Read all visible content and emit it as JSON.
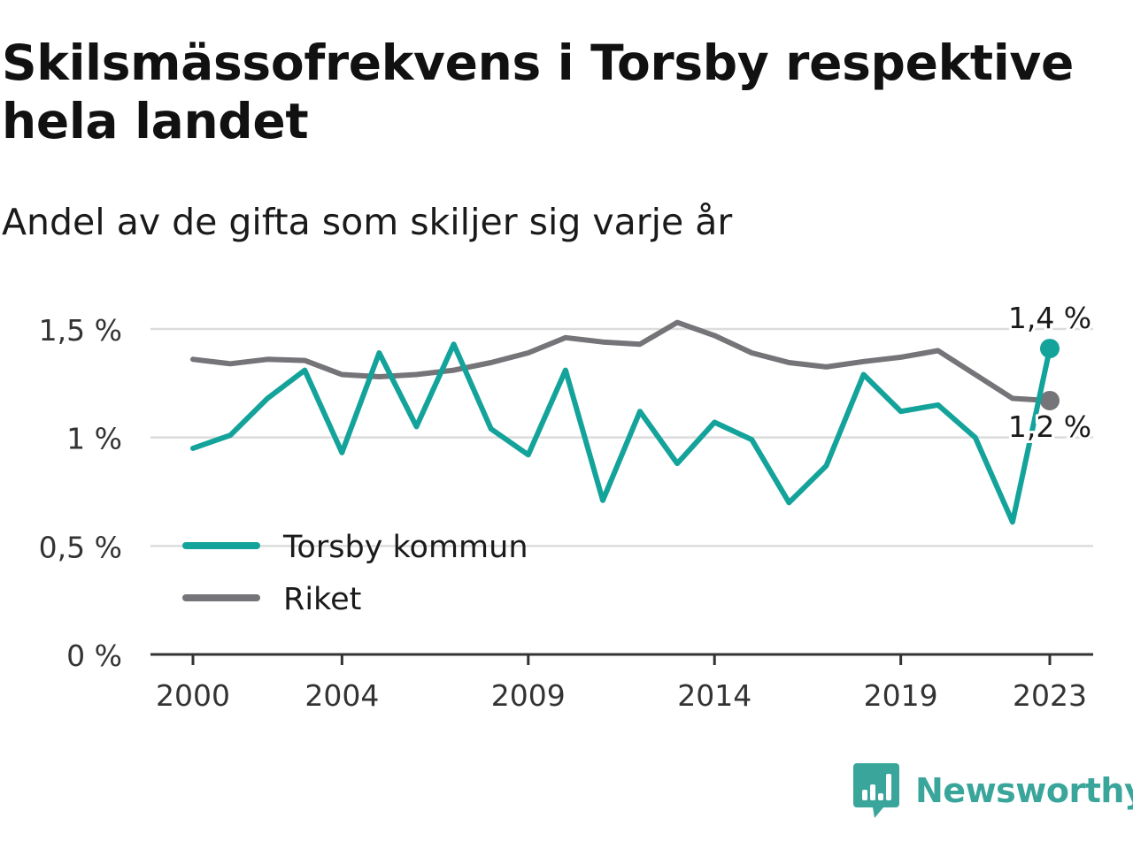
{
  "title": "Skilsmässofrekvens i Torsby respektive hela landet",
  "subtitle": "Andel av de gifta som skiljer sig varje år",
  "brand": "Newsworthy",
  "colors": {
    "torsby": "#14a39a",
    "riket": "#757478",
    "grid": "#dcdcdc",
    "axis": "#333333",
    "brand": "#3aa69b"
  },
  "chart_data": {
    "type": "line",
    "x": [
      2000,
      2001,
      2002,
      2003,
      2004,
      2005,
      2006,
      2007,
      2008,
      2009,
      2010,
      2011,
      2012,
      2013,
      2014,
      2015,
      2016,
      2017,
      2018,
      2019,
      2020,
      2021,
      2022,
      2023
    ],
    "series": [
      {
        "name": "Torsby kommun",
        "color": "#14a39a",
        "values": [
          0.95,
          1.01,
          1.18,
          1.31,
          0.93,
          1.39,
          1.05,
          1.43,
          1.04,
          0.92,
          1.31,
          0.71,
          1.12,
          0.88,
          1.07,
          0.99,
          0.7,
          0.87,
          1.29,
          1.12,
          1.15,
          1.0,
          0.61,
          1.41
        ],
        "end_label": "1,4 %"
      },
      {
        "name": "Riket",
        "color": "#757478",
        "values": [
          1.36,
          1.34,
          1.36,
          1.355,
          1.29,
          1.28,
          1.29,
          1.31,
          1.345,
          1.39,
          1.46,
          1.44,
          1.43,
          1.53,
          1.47,
          1.39,
          1.345,
          1.325,
          1.35,
          1.37,
          1.4,
          1.29,
          1.18,
          1.17
        ],
        "end_label": "1,2 %"
      }
    ],
    "ylim": [
      0,
      1.5
    ],
    "yticks": [
      {
        "value": 0,
        "label": "0 %"
      },
      {
        "value": 0.5,
        "label": "0,5 %"
      },
      {
        "value": 1,
        "label": "1 %"
      },
      {
        "value": 1.5,
        "label": "1,5 %"
      }
    ],
    "xticks": [
      {
        "value": 2000,
        "label": "2000"
      },
      {
        "value": 2004,
        "label": "2004"
      },
      {
        "value": 2009,
        "label": "2009"
      },
      {
        "value": 2014,
        "label": "2014"
      },
      {
        "value": 2019,
        "label": "2019"
      },
      {
        "value": 2023,
        "label": "2023"
      }
    ],
    "grid": true,
    "legend": "bottom-left"
  }
}
